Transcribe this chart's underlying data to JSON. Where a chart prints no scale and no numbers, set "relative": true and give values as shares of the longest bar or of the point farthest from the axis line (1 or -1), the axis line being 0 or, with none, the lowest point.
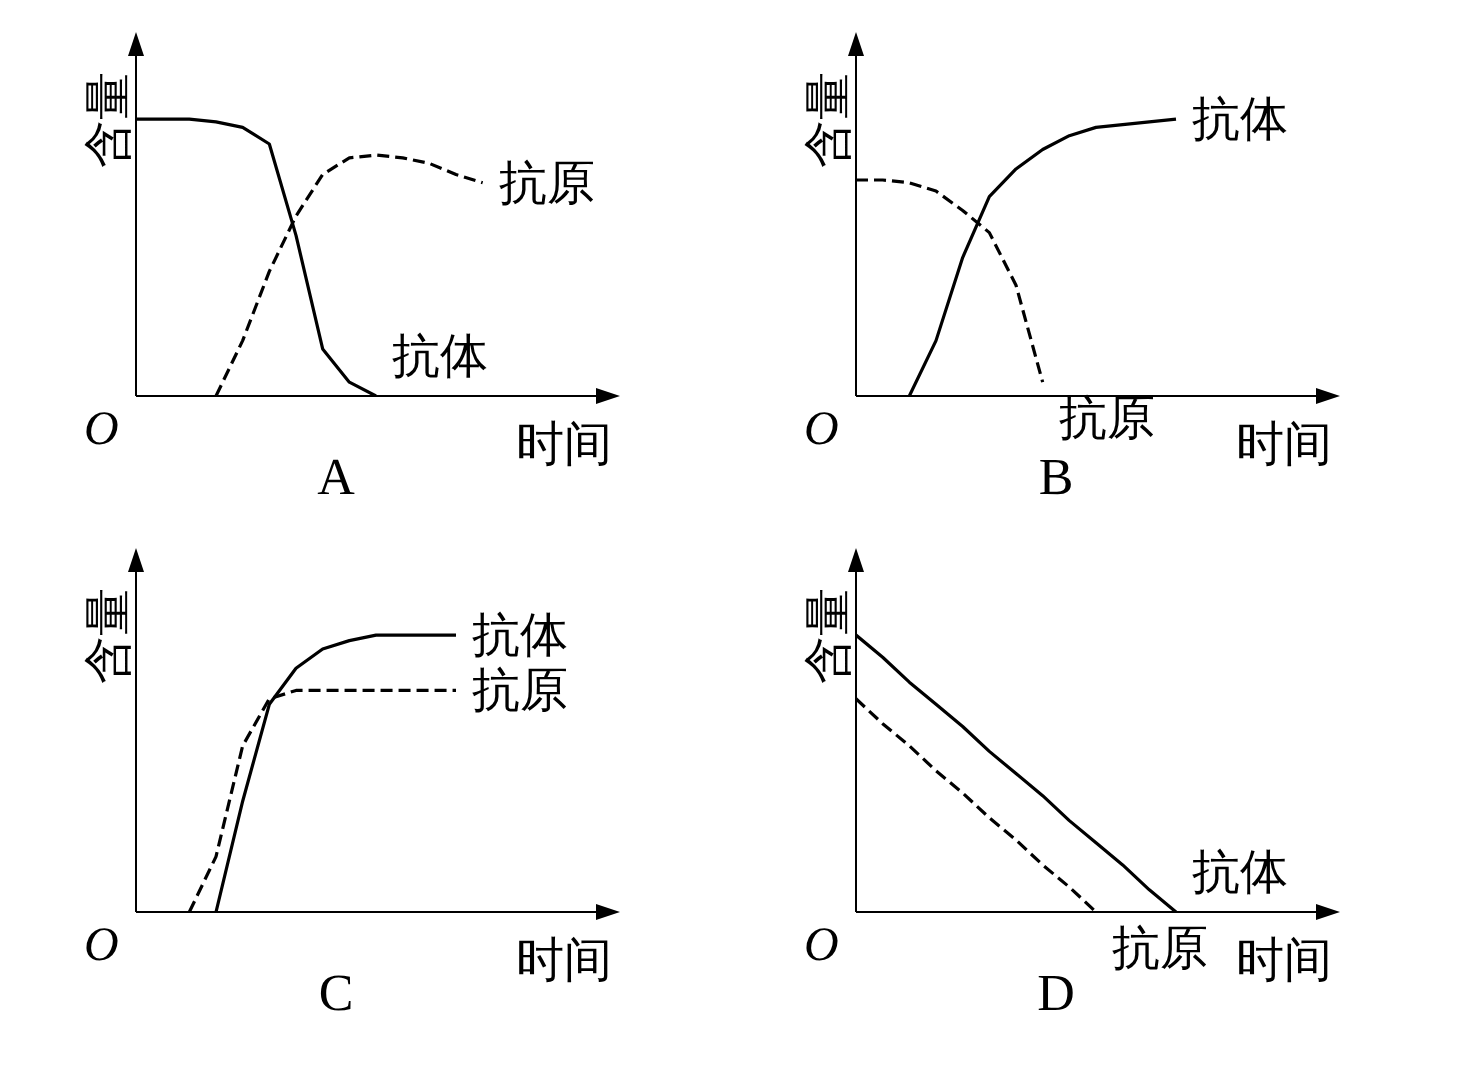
{
  "chart_data": [
    {
      "type": "line",
      "relative": true,
      "title": "A",
      "xlabel": "时间",
      "ylabel": "含量",
      "annotations": [
        "O"
      ],
      "categories": [
        null,
        null,
        null,
        null,
        null,
        null,
        null,
        null,
        null,
        null,
        null,
        null,
        null,
        null,
        null,
        null,
        null,
        null,
        null
      ],
      "series": [
        {
          "name": "抗体",
          "color": "#000000",
          "line_style": "solid",
          "values": [
            1,
            1,
            1,
            0.99,
            0.97,
            0.91,
            0.58,
            0.17,
            0.05,
            0,
            null,
            null,
            null,
            null,
            null,
            null,
            null,
            null,
            null
          ]
        },
        {
          "name": "抗原",
          "color": "#000000",
          "line_style": "dashed",
          "values": [
            null,
            null,
            null,
            0,
            0.2,
            0.45,
            0.65,
            0.8,
            0.86,
            0.87,
            0.86,
            0.84,
            0.8,
            0.77,
            null,
            null,
            null,
            null,
            null
          ]
        }
      ]
    },
    {
      "type": "line",
      "relative": true,
      "title": "B",
      "xlabel": "时间",
      "ylabel": "含量",
      "annotations": [
        "O"
      ],
      "categories": [
        null,
        null,
        null,
        null,
        null,
        null,
        null,
        null,
        null,
        null,
        null,
        null,
        null,
        null,
        null,
        null,
        null,
        null,
        null
      ],
      "series": [
        {
          "name": "抗体",
          "color": "#000000",
          "line_style": "solid",
          "values": [
            null,
            null,
            0,
            0.2,
            0.5,
            0.72,
            0.82,
            0.89,
            0.94,
            0.97,
            0.98,
            0.99,
            1,
            null,
            null,
            null,
            null,
            null,
            null
          ]
        },
        {
          "name": "抗原",
          "color": "#000000",
          "line_style": "dashed",
          "values": [
            0.78,
            0.78,
            0.77,
            0.74,
            0.67,
            0.59,
            0.4,
            0.05,
            null,
            null,
            null,
            null,
            null,
            null,
            null,
            null,
            null,
            null,
            null
          ]
        }
      ]
    },
    {
      "type": "line",
      "relative": true,
      "title": "C",
      "xlabel": "时间",
      "ylabel": "含量",
      "annotations": [
        "O"
      ],
      "categories": [
        null,
        null,
        null,
        null,
        null,
        null,
        null,
        null,
        null,
        null,
        null,
        null,
        null,
        null,
        null,
        null,
        null,
        null,
        null
      ],
      "series": [
        {
          "name": "抗体",
          "color": "#000000",
          "line_style": "solid",
          "values": [
            null,
            null,
            null,
            0,
            0.4,
            0.75,
            0.88,
            0.95,
            0.98,
            1,
            1,
            1,
            1,
            null,
            null,
            null,
            null,
            null,
            null
          ]
        },
        {
          "name": "抗原",
          "color": "#000000",
          "line_style": "dashed",
          "values": [
            null,
            null,
            0,
            0.2,
            0.6,
            0.77,
            0.8,
            0.8,
            0.8,
            0.8,
            0.8,
            0.8,
            0.8,
            null,
            null,
            null,
            null,
            null,
            null
          ]
        }
      ]
    },
    {
      "type": "line",
      "relative": true,
      "title": "D",
      "xlabel": "时间",
      "ylabel": "含量",
      "annotations": [
        "O"
      ],
      "categories": [
        null,
        null,
        null,
        null,
        null,
        null,
        null,
        null,
        null,
        null,
        null,
        null,
        null,
        null,
        null,
        null,
        null,
        null,
        null
      ],
      "series": [
        {
          "name": "抗体",
          "color": "#000000",
          "line_style": "solid",
          "values": [
            1,
            0.92,
            0.83,
            0.75,
            0.67,
            0.58,
            0.5,
            0.42,
            0.33,
            0.25,
            0.17,
            0.08,
            0,
            null,
            null,
            null,
            null,
            null,
            null
          ]
        },
        {
          "name": "抗原",
          "color": "#000000",
          "line_style": "dashed",
          "values": [
            0.77,
            0.68,
            0.6,
            0.51,
            0.43,
            0.34,
            0.26,
            0.17,
            0.09,
            0,
            null,
            null,
            null,
            null,
            null,
            null,
            null,
            null,
            null
          ]
        }
      ]
    }
  ]
}
